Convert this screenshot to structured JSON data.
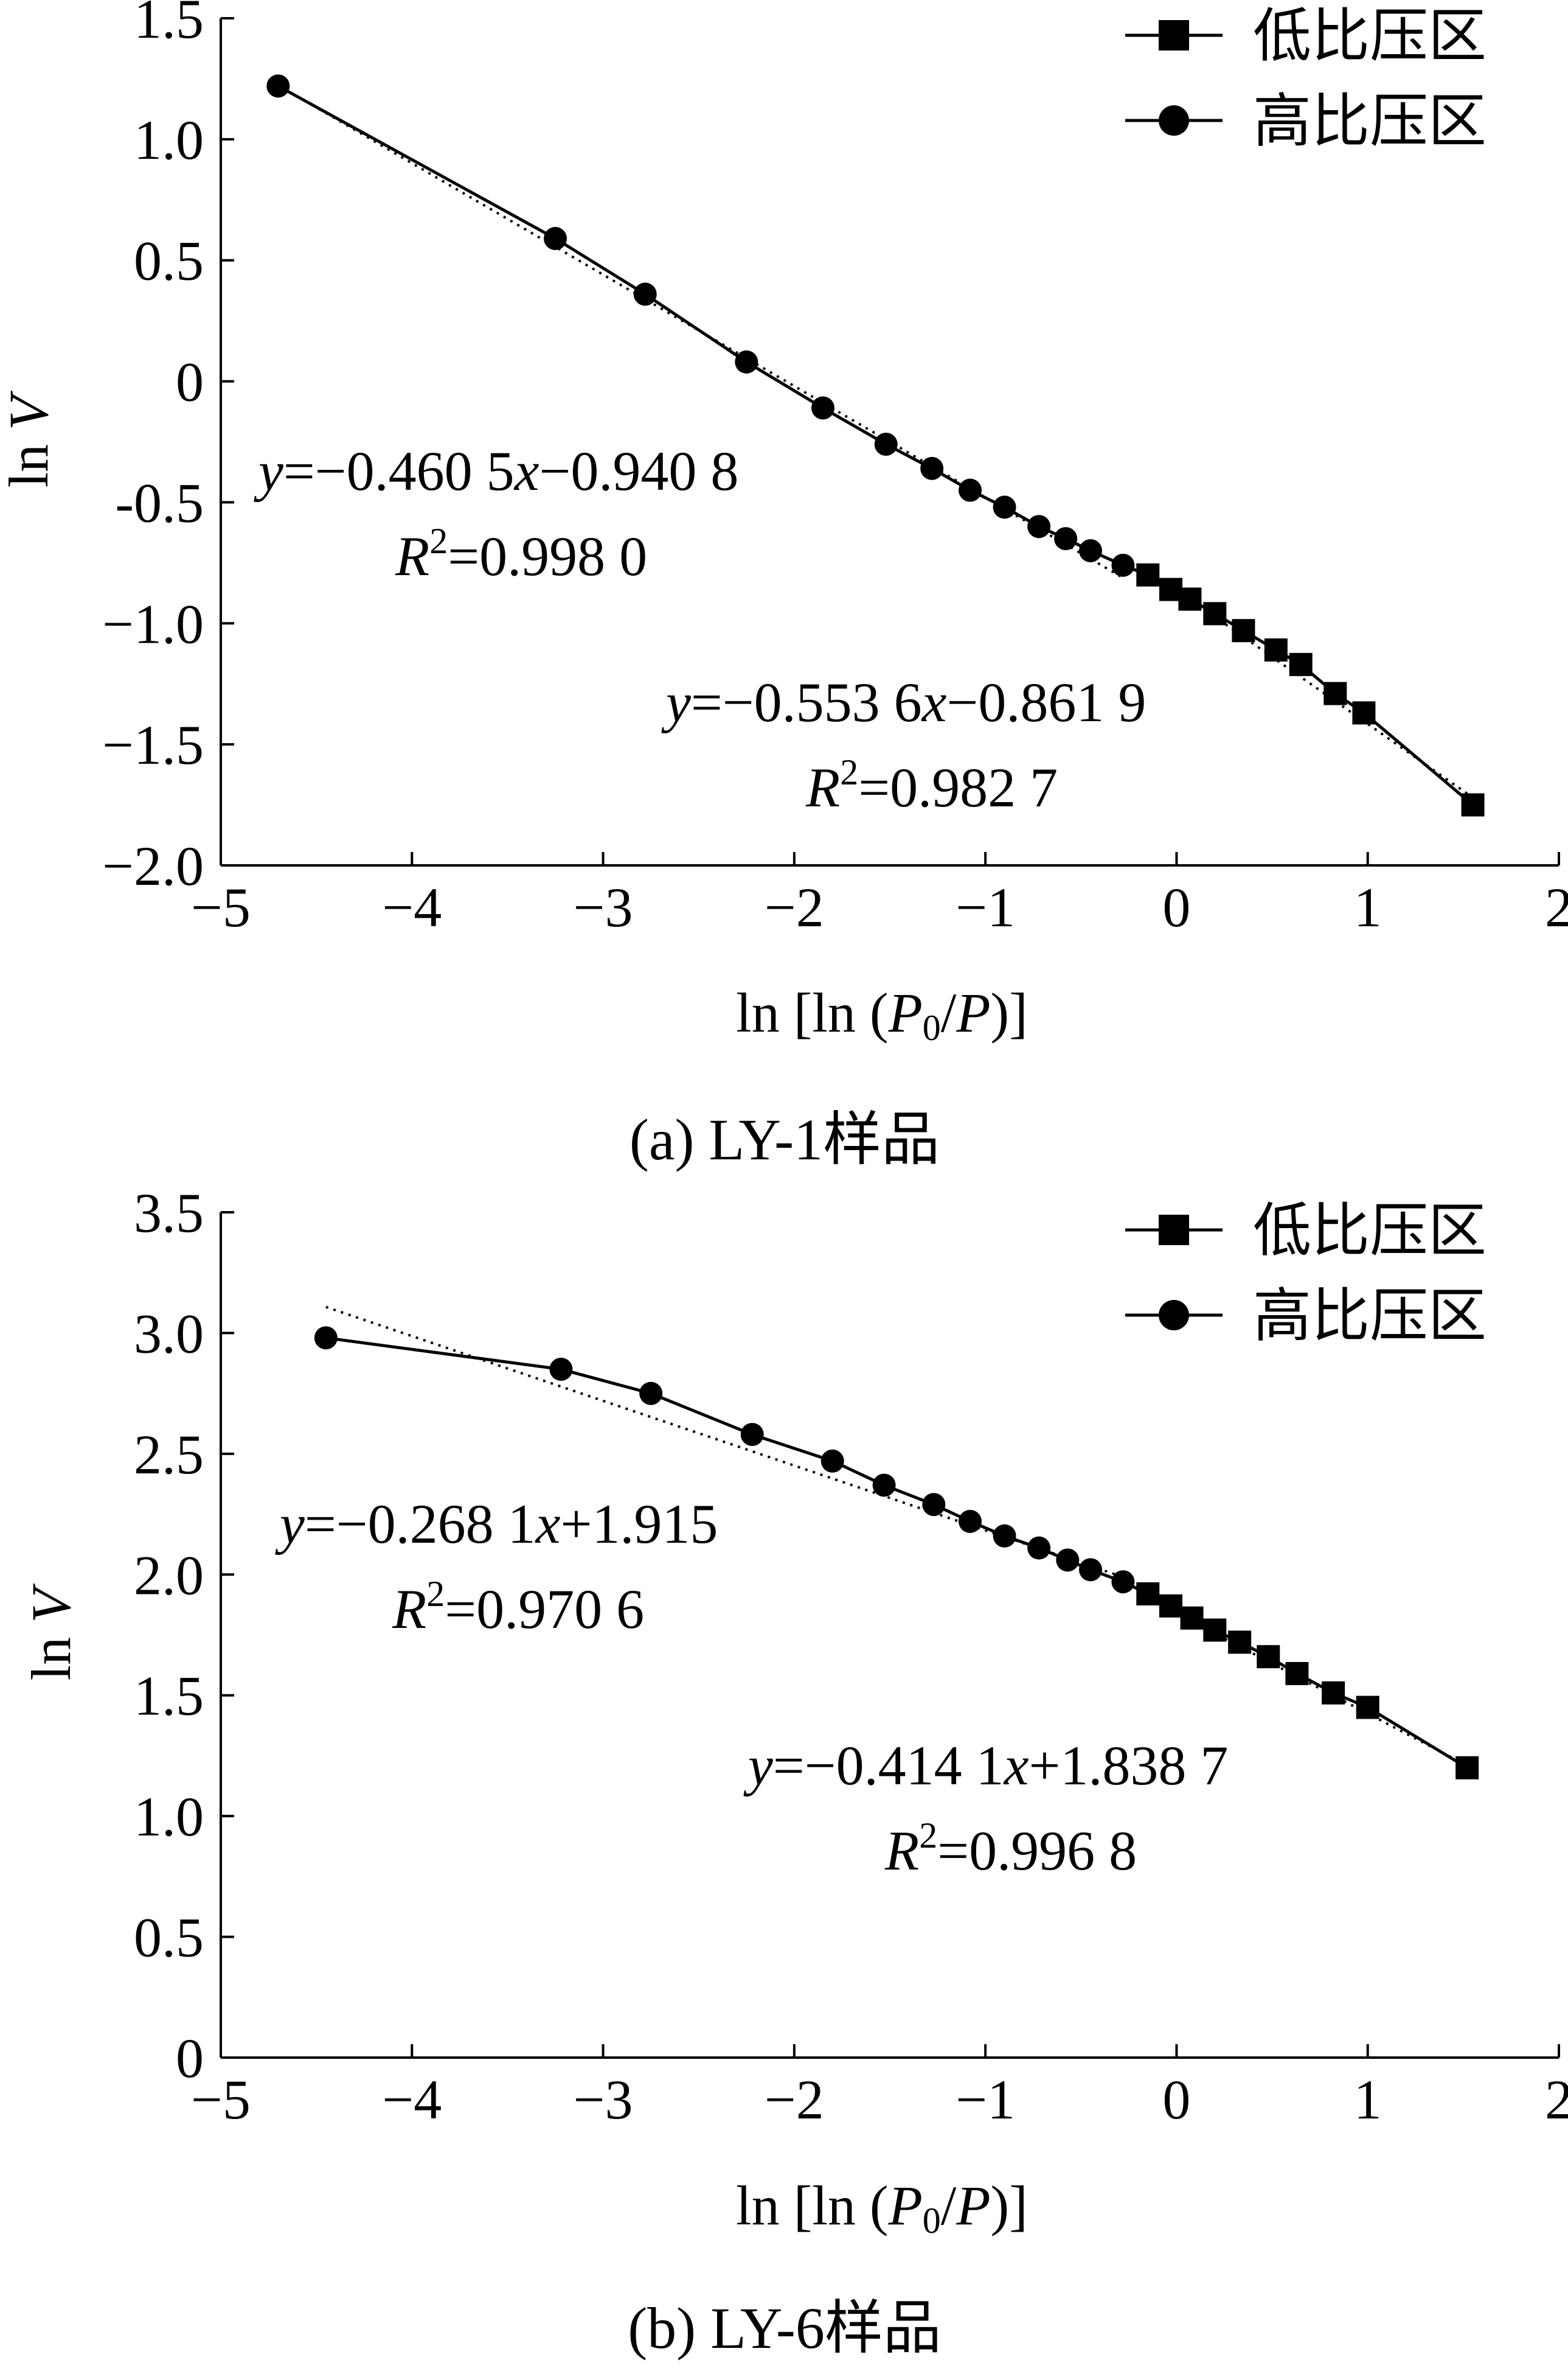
{
  "chart_data": [
    {
      "type": "line",
      "caption": "(a)  LY-1样品",
      "xlabel": "ln [ln (P0/P)]",
      "ylabel": "ln V",
      "xlim": [
        -5,
        2
      ],
      "ylim": [
        -2.0,
        1.5
      ],
      "x_ticks": [
        -5,
        -4,
        -3,
        -2,
        -1,
        0,
        1,
        2
      ],
      "x_tick_labels": [
        "−5",
        "−4",
        "−3",
        "−2",
        "−1",
        "0",
        "1",
        "2"
      ],
      "y_ticks": [
        -2.0,
        -1.5,
        -1.0,
        -0.5,
        0,
        0.5,
        1.0,
        1.5
      ],
      "y_tick_labels": [
        "−2.0",
        "−1.5",
        "−1.0",
        "-0.5",
        "0",
        "0.5",
        "1.0",
        "1.5"
      ],
      "legend": {
        "position": "top-right",
        "entries": [
          "低比压区",
          "高比压区"
        ]
      },
      "series": [
        {
          "name": "高比压区",
          "marker": "circle",
          "x": [
            -4.7,
            -3.25,
            -2.78,
            -2.25,
            -1.85,
            -1.52,
            -1.28,
            -1.08,
            -0.9,
            -0.72,
            -0.58,
            -0.45,
            -0.28
          ],
          "y": [
            1.22,
            0.59,
            0.36,
            0.08,
            -0.11,
            -0.26,
            -0.36,
            -0.45,
            -0.52,
            -0.6,
            -0.65,
            -0.7,
            -0.76
          ]
        },
        {
          "name": "低比压区",
          "marker": "square",
          "x": [
            -0.15,
            -0.03,
            0.07,
            0.2,
            0.35,
            0.52,
            0.65,
            0.83,
            0.98,
            1.55
          ],
          "y": [
            -0.8,
            -0.86,
            -0.9,
            -0.96,
            -1.03,
            -1.11,
            -1.17,
            -1.29,
            -1.37,
            -1.75
          ]
        }
      ],
      "fits": [
        {
          "slope": -0.4605,
          "intercept": -0.9408,
          "x_range": [
            -4.7,
            -0.28
          ]
        },
        {
          "slope": -0.5536,
          "intercept": -0.8619,
          "x_range": [
            -0.15,
            1.55
          ]
        }
      ],
      "annotations": [
        {
          "eq": {
            "y": "y",
            "mid1": "=−0.460 5",
            "x": "x",
            "mid2": "−0.940 8"
          },
          "r2": {
            "R": "R",
            "sup": "2",
            "val": "=0.998 0"
          }
        },
        {
          "eq": {
            "y": "y",
            "mid1": "=−0.553 6",
            "x": "x",
            "mid2": "−0.861 9"
          },
          "r2": {
            "R": "R",
            "sup": "2",
            "val": "=0.982 7"
          }
        }
      ]
    },
    {
      "type": "line",
      "caption": "(b)  LY-6样品",
      "xlabel": "ln [ln (P0/P)]",
      "ylabel": "ln V",
      "xlim": [
        -5,
        2
      ],
      "ylim": [
        0,
        3.5
      ],
      "x_ticks": [
        -5,
        -4,
        -3,
        -2,
        -1,
        0,
        1,
        2
      ],
      "x_tick_labels": [
        "−5",
        "−4",
        "−3",
        "−2",
        "−1",
        "0",
        "1",
        "2"
      ],
      "y_ticks": [
        0,
        0.5,
        1.0,
        1.5,
        2.0,
        2.5,
        3.0,
        3.5
      ],
      "y_tick_labels": [
        "0",
        "0.5",
        "1.0",
        "1.5",
        "2.0",
        "2.5",
        "3.0",
        "3.5"
      ],
      "legend": {
        "position": "top-right",
        "entries": [
          "低比压区",
          "高比压区"
        ]
      },
      "series": [
        {
          "name": "高比压区",
          "marker": "circle",
          "x": [
            -4.45,
            -3.22,
            -2.75,
            -2.22,
            -1.8,
            -1.53,
            -1.27,
            -1.08,
            -0.9,
            -0.72,
            -0.57,
            -0.45,
            -0.28
          ],
          "y": [
            2.98,
            2.85,
            2.75,
            2.58,
            2.47,
            2.37,
            2.29,
            2.22,
            2.16,
            2.11,
            2.06,
            2.02,
            1.97
          ]
        },
        {
          "name": "低比压区",
          "marker": "square",
          "x": [
            -0.15,
            -0.03,
            0.08,
            0.2,
            0.33,
            0.48,
            0.63,
            0.82,
            1.0,
            1.52
          ],
          "y": [
            1.92,
            1.87,
            1.82,
            1.77,
            1.72,
            1.66,
            1.59,
            1.51,
            1.45,
            1.2
          ]
        }
      ],
      "fits": [
        {
          "slope": -0.2681,
          "intercept": 1.915,
          "x_range": [
            -4.45,
            -0.28
          ]
        },
        {
          "slope": -0.4141,
          "intercept": 1.8387,
          "x_range": [
            -0.15,
            1.52
          ]
        }
      ],
      "annotations": [
        {
          "eq": {
            "y": "y",
            "mid1": "=−0.268 1",
            "x": "x",
            "mid2": "+1.915"
          },
          "r2": {
            "R": "R",
            "sup": "2",
            "val": "=0.970 6"
          }
        },
        {
          "eq": {
            "y": "y",
            "mid1": "=−0.414 1",
            "x": "x",
            "mid2": "+1.838 7"
          },
          "r2": {
            "R": "R",
            "sup": "2",
            "val": "=0.996 8"
          }
        }
      ]
    }
  ]
}
